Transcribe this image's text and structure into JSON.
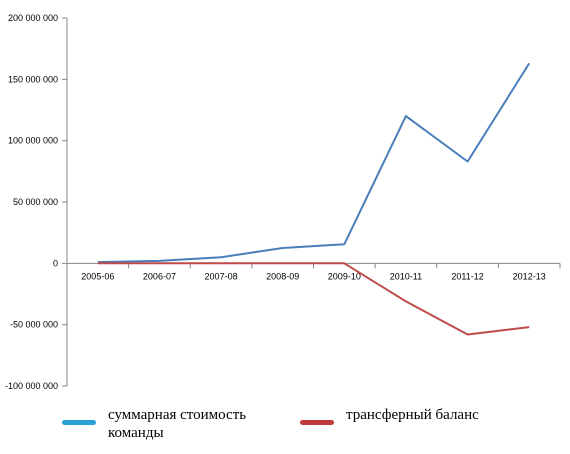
{
  "chart_data": {
    "type": "line",
    "categories": [
      "2005-06",
      "2006-07",
      "2007-08",
      "2008-09",
      "2009-10",
      "2010-11",
      "2011-12",
      "2012-13"
    ],
    "ylim": [
      -100000000,
      200000000
    ],
    "yticks": [
      -100000000,
      -50000000,
      0,
      50000000,
      100000000,
      150000000,
      200000000
    ],
    "ytick_labels": [
      "-100 000 000",
      "-50 000 000",
      "0",
      "50 000 000",
      "100 000 000",
      "150 000 000",
      "200 000 000"
    ],
    "grid": false,
    "legend_position": "bottom",
    "series": [
      {
        "name": "суммарная стоимость команды",
        "color": "#4a7ebb",
        "values": [
          1000000,
          2000000,
          5000000,
          12500000,
          15500000,
          120000000,
          83000000,
          163000000
        ]
      },
      {
        "name": "трансферный баланс",
        "color": "#be4b48",
        "values": [
          0,
          0,
          0,
          0,
          0,
          -31000000,
          -58000000,
          -52000000
        ]
      }
    ]
  },
  "legend": {
    "items": [
      {
        "label": "суммарная стоимость команды",
        "color": "#2a9fd6"
      },
      {
        "label": "трансферный баланс",
        "color": "#c0393b"
      }
    ]
  }
}
